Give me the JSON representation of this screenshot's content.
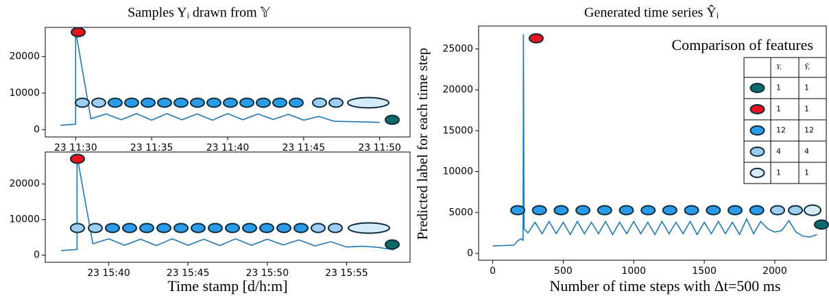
{
  "chart_data": [
    {
      "type": "line",
      "title": "Samples Yᵢ drawn from 𝕐",
      "color": "#1f77b4",
      "x": [
        "23 11:29",
        "23 11:30",
        "23 11:30",
        "23 11:31",
        "23 11:32",
        "23 11:33",
        "23 11:34",
        "23 11:35",
        "23 11:36",
        "23 11:37",
        "23 11:38",
        "23 11:39",
        "23 11:40",
        "23 11:41",
        "23 11:42",
        "23 11:43",
        "23 11:44",
        "23 11:45",
        "23 11:46",
        "23 11:47",
        "23 11:48",
        "23 11:49",
        "23 11:50"
      ],
      "values": [
        1200,
        1500,
        27000,
        3000,
        4300,
        2700,
        4400,
        2600,
        4400,
        2700,
        4300,
        2600,
        4400,
        2700,
        4300,
        2800,
        4200,
        2600,
        3600,
        2300,
        2200,
        2100,
        2000
      ],
      "xlim": [
        "23 11:28",
        "23 11:52"
      ],
      "xticks": [
        "23 11:30",
        "23 11:35",
        "23 11:40",
        "23 11:45",
        "23 11:50"
      ],
      "ylim": [
        -2000,
        28000
      ],
      "yticks": [
        0,
        10000,
        20000
      ]
    },
    {
      "type": "line",
      "color": "#1f77b4",
      "xlabel": "Time stamp [d/h:m]",
      "x": [
        "23 15:37",
        "23 15:38",
        "23 15:38",
        "23 15:39",
        "23 15:40",
        "23 15:41",
        "23 15:42",
        "23 15:43",
        "23 15:44",
        "23 15:45",
        "23 15:46",
        "23 15:47",
        "23 15:48",
        "23 15:49",
        "23 15:50",
        "23 15:51",
        "23 15:52",
        "23 15:53",
        "23 15:54",
        "23 15:55",
        "23 15:56",
        "23 15:57",
        "23 15:58"
      ],
      "values": [
        1300,
        1600,
        28000,
        3200,
        4600,
        2800,
        4500,
        2700,
        4600,
        2800,
        4500,
        2700,
        4600,
        2800,
        4500,
        2900,
        4300,
        2600,
        3800,
        2300,
        2500,
        2200,
        1500
      ],
      "xlim": [
        "23 15:36",
        "23 15:59"
      ],
      "xticks": [
        "23 15:40",
        "23 15:45",
        "23 15:50",
        "23 15:55"
      ],
      "ylim": [
        -2000,
        29000
      ],
      "yticks": [
        0,
        10000,
        20000
      ]
    },
    {
      "type": "line",
      "title": "Generated time series Ŷᵢ",
      "color": "#1f77b4",
      "xlabel": "Number of time steps with Δt=500 ms",
      "ylabel": "Predicted label for each time step",
      "x": [
        0,
        150,
        175,
        200,
        215,
        218,
        222,
        250,
        300,
        350,
        400,
        450,
        500,
        550,
        600,
        650,
        700,
        750,
        800,
        850,
        900,
        950,
        1000,
        1050,
        1100,
        1150,
        1200,
        1250,
        1300,
        1350,
        1400,
        1450,
        1500,
        1550,
        1600,
        1650,
        1700,
        1750,
        1800,
        1850,
        1900,
        1950,
        2000,
        2050,
        2100,
        2150,
        2200,
        2250,
        2300
      ],
      "values": [
        900,
        1000,
        1500,
        1800,
        1600,
        26800,
        3000,
        2500,
        3800,
        2400,
        3900,
        2400,
        3800,
        2300,
        3900,
        2400,
        3800,
        2400,
        3900,
        2300,
        3800,
        2400,
        3900,
        2400,
        3800,
        2300,
        3900,
        2400,
        3800,
        2400,
        3900,
        2300,
        3800,
        2400,
        3900,
        2400,
        3800,
        2300,
        4200,
        2400,
        3900,
        3000,
        2600,
        2800,
        4000,
        2600,
        2100,
        2000,
        2300
      ],
      "xlim": [
        -100,
        2365
      ],
      "xticks": [
        0,
        500,
        1000,
        1500,
        2000
      ],
      "ylim": [
        -840,
        27800
      ],
      "yticks": [
        0,
        5000,
        10000,
        15000,
        20000,
        25000
      ],
      "table": {
        "title": "Comparison of features",
        "columns": [
          "Yᵢ",
          "Ŷᵢ"
        ],
        "rows": [
          {
            "color": "#0e6b6b",
            "values": [
              1,
              1
            ]
          },
          {
            "color": "#e8141c",
            "values": [
              1,
              1
            ]
          },
          {
            "color": "#2b9be8",
            "values": [
              12,
              12
            ]
          },
          {
            "color": "#9dcdf0",
            "values": [
              4,
              4
            ]
          },
          {
            "color": "#d6ecfb",
            "values": [
              1,
              1
            ]
          }
        ]
      }
    }
  ]
}
